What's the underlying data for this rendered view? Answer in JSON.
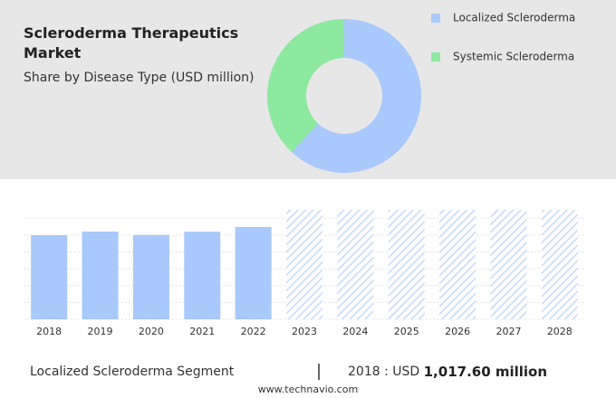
{
  "chart_data": [
    {
      "type": "pie",
      "title": "Scleroderma Therapeutics Market",
      "subtitle": "Share by Disease Type (USD million)",
      "series": [
        {
          "name": "Localized Scleroderma",
          "color": "#a9c8fb",
          "values": [
            62
          ]
        },
        {
          "name": "Systemic Scleroderma",
          "color": "#8de8a0",
          "values": [
            38
          ]
        }
      ]
    },
    {
      "type": "bar",
      "categories": [
        "2018",
        "2019",
        "2020",
        "2021",
        "2022",
        "2023",
        "2024",
        "2025",
        "2026",
        "2027",
        "2028"
      ],
      "values": [
        1017.6,
        1061,
        1020,
        1060,
        1116,
        null,
        null,
        null,
        null,
        null,
        null
      ],
      "color": "#a9c8fb",
      "grid": true
    }
  ],
  "highlight": {
    "segment": "Localized Scleroderma Segment",
    "year_currency": "2018 : USD",
    "value": "1,017.60 million"
  },
  "source": "www.technavio.com"
}
